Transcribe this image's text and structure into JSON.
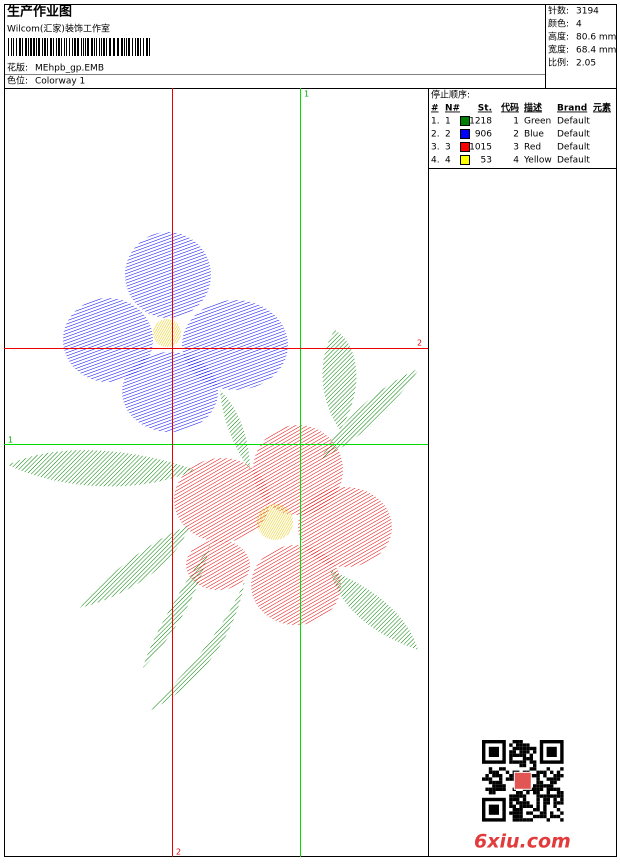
{
  "header": {
    "title": "生产作业图",
    "studio": "Wilcom(汇家)装饰工作室",
    "design_label": "花版:",
    "design_file": "MEhpb_gp.EMB",
    "colorway_label": "色位:",
    "colorway": "Colorway 1"
  },
  "stats": [
    {
      "label": "针数:",
      "value": "3194"
    },
    {
      "label": "颜色:",
      "value": "4"
    },
    {
      "label": "高度:",
      "value": "80.6 mm"
    },
    {
      "label": "宽度:",
      "value": "68.4 mm"
    },
    {
      "label": "比例:",
      "value": "2.05"
    }
  ],
  "stop_sequence": {
    "title": "停止顺序:",
    "columns": [
      "#",
      "N#",
      "St.",
      "代码",
      "描述",
      "Brand",
      "元素"
    ],
    "rows": [
      {
        "index": "1.",
        "n": "1",
        "color": "#008000",
        "stitches": "1218",
        "code": "1",
        "description": "Green",
        "brand": "Default"
      },
      {
        "index": "2.",
        "n": "2",
        "color": "#0000ff",
        "stitches": "906",
        "code": "2",
        "description": "Blue",
        "brand": "Default"
      },
      {
        "index": "3.",
        "n": "3",
        "color": "#ff0000",
        "stitches": "1015",
        "code": "3",
        "description": "Red",
        "brand": "Default"
      },
      {
        "index": "4.",
        "n": "4",
        "color": "#ffff00",
        "stitches": "53",
        "code": "4",
        "description": "Yellow",
        "brand": "Default"
      }
    ]
  },
  "guides": {
    "vertical_green": "1",
    "horizontal_green": "1",
    "horizontal_red": "2",
    "vertical_red": "2"
  },
  "watermark": "6xiu.com"
}
